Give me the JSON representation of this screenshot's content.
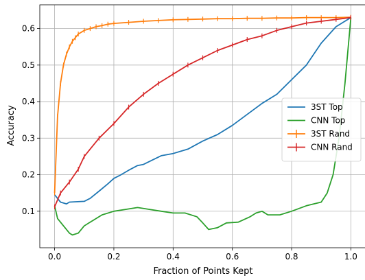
{
  "chart_data": {
    "type": "line",
    "xlabel": "Fraction of Points Kept",
    "ylabel": "Accuracy",
    "xlim": [
      -0.05,
      1.05
    ],
    "ylim": [
      0.0,
      0.665
    ],
    "xticks": [
      "0.0",
      "0.2",
      "0.4",
      "0.6",
      "0.8",
      "1.0"
    ],
    "yticks": [
      "0.1",
      "0.2",
      "0.3",
      "0.4",
      "0.5",
      "0.6"
    ],
    "grid": true,
    "legend_position": "center-right",
    "series": [
      {
        "name": "3ST Top",
        "color": "#1f77b4",
        "marker": "none",
        "x": [
          0.0,
          0.02,
          0.04,
          0.05,
          0.1,
          0.12,
          0.15,
          0.18,
          0.2,
          0.22,
          0.25,
          0.28,
          0.3,
          0.33,
          0.36,
          0.4,
          0.45,
          0.5,
          0.55,
          0.6,
          0.65,
          0.7,
          0.75,
          0.8,
          0.85,
          0.9,
          0.95,
          1.0
        ],
        "y": [
          0.145,
          0.125,
          0.12,
          0.125,
          0.127,
          0.135,
          0.155,
          0.175,
          0.19,
          0.198,
          0.212,
          0.225,
          0.228,
          0.24,
          0.252,
          0.258,
          0.27,
          0.292,
          0.31,
          0.335,
          0.365,
          0.395,
          0.42,
          0.46,
          0.5,
          0.56,
          0.605,
          0.63
        ]
      },
      {
        "name": "CNN Top",
        "color": "#2ca02c",
        "marker": "none",
        "x": [
          0.0,
          0.01,
          0.03,
          0.05,
          0.06,
          0.08,
          0.1,
          0.13,
          0.16,
          0.2,
          0.24,
          0.28,
          0.32,
          0.36,
          0.4,
          0.44,
          0.48,
          0.5,
          0.52,
          0.55,
          0.58,
          0.62,
          0.66,
          0.68,
          0.7,
          0.72,
          0.76,
          0.8,
          0.85,
          0.9,
          0.92,
          0.94,
          0.96,
          0.98,
          1.0
        ],
        "y": [
          0.115,
          0.08,
          0.06,
          0.04,
          0.035,
          0.04,
          0.06,
          0.075,
          0.09,
          0.1,
          0.105,
          0.11,
          0.105,
          0.1,
          0.095,
          0.095,
          0.085,
          0.068,
          0.05,
          0.055,
          0.068,
          0.07,
          0.085,
          0.095,
          0.1,
          0.09,
          0.09,
          0.1,
          0.115,
          0.125,
          0.15,
          0.2,
          0.3,
          0.45,
          0.63
        ]
      },
      {
        "name": "3ST Rand",
        "color": "#ff7f0e",
        "marker": "errorbar",
        "x": [
          0.0,
          0.01,
          0.02,
          0.03,
          0.04,
          0.05,
          0.06,
          0.07,
          0.08,
          0.1,
          0.12,
          0.14,
          0.16,
          0.18,
          0.2,
          0.25,
          0.3,
          0.35,
          0.4,
          0.45,
          0.5,
          0.55,
          0.6,
          0.65,
          0.7,
          0.75,
          0.8,
          0.85,
          0.9,
          0.95,
          1.0
        ],
        "y": [
          0.15,
          0.36,
          0.45,
          0.5,
          0.53,
          0.55,
          0.565,
          0.575,
          0.585,
          0.595,
          0.6,
          0.605,
          0.608,
          0.612,
          0.614,
          0.617,
          0.62,
          0.622,
          0.624,
          0.625,
          0.626,
          0.627,
          0.627,
          0.628,
          0.628,
          0.629,
          0.629,
          0.63,
          0.63,
          0.63,
          0.631
        ]
      },
      {
        "name": "CNN Rand",
        "color": "#d62728",
        "marker": "errorbar",
        "x": [
          0.0,
          0.02,
          0.05,
          0.08,
          0.1,
          0.15,
          0.2,
          0.25,
          0.3,
          0.35,
          0.4,
          0.45,
          0.5,
          0.55,
          0.6,
          0.65,
          0.7,
          0.75,
          0.8,
          0.85,
          0.9,
          0.95,
          1.0
        ],
        "y": [
          0.112,
          0.15,
          0.18,
          0.215,
          0.25,
          0.3,
          0.34,
          0.385,
          0.42,
          0.45,
          0.475,
          0.5,
          0.52,
          0.54,
          0.555,
          0.57,
          0.58,
          0.595,
          0.605,
          0.615,
          0.62,
          0.625,
          0.63
        ]
      }
    ]
  }
}
